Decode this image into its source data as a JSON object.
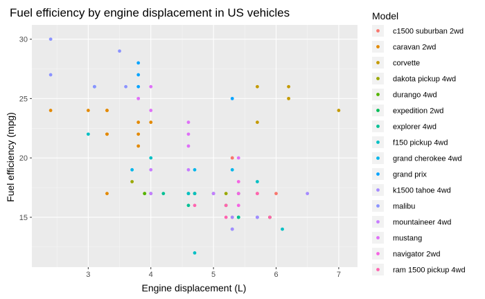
{
  "chart_data": {
    "type": "scatter",
    "title": "Fuel efficiency by engine displacement in US vehicles",
    "xlabel": "Engine displacement (L)",
    "ylabel": "Fuel efficiency (mpg)",
    "xlim": [
      2.1,
      7.3
    ],
    "ylim": [
      10.8,
      31.2
    ],
    "xticks": [
      3,
      4,
      5,
      6,
      7
    ],
    "yticks": [
      15,
      20,
      25,
      30
    ],
    "grid": true,
    "legend_title": "Model",
    "legend_position": "right",
    "series": [
      {
        "name": "c1500 suburban 2wd",
        "color": "#F8766D",
        "points": [
          [
            5.3,
            20
          ],
          [
            5.3,
            15
          ],
          [
            5.3,
            20
          ],
          [
            5.7,
            17
          ],
          [
            6.0,
            17
          ]
        ]
      },
      {
        "name": "caravan 2wd",
        "color": "#E38900",
        "points": [
          [
            2.4,
            24
          ],
          [
            3.0,
            24
          ],
          [
            3.3,
            22
          ],
          [
            3.3,
            22
          ],
          [
            3.3,
            24
          ],
          [
            3.3,
            24
          ],
          [
            3.3,
            17
          ],
          [
            3.8,
            22
          ],
          [
            3.8,
            21
          ],
          [
            3.8,
            23
          ],
          [
            4.0,
            23
          ]
        ]
      },
      {
        "name": "corvette",
        "color": "#C49A00",
        "points": [
          [
            5.7,
            26
          ],
          [
            5.7,
            23
          ],
          [
            6.2,
            26
          ],
          [
            6.2,
            25
          ],
          [
            7.0,
            24
          ]
        ]
      },
      {
        "name": "dakota pickup 4wd",
        "color": "#99A800",
        "points": [
          [
            3.7,
            18
          ],
          [
            3.9,
            17
          ],
          [
            4.7,
            17
          ],
          [
            5.2,
            17
          ],
          [
            5.9,
            15
          ]
        ]
      },
      {
        "name": "durango 4wd",
        "color": "#53B400",
        "points": [
          [
            3.9,
            17
          ],
          [
            4.7,
            17
          ],
          [
            5.2,
            16
          ],
          [
            5.9,
            15
          ]
        ]
      },
      {
        "name": "expedition 2wd",
        "color": "#00BC56",
        "points": [
          [
            4.6,
            17
          ],
          [
            5.4,
            17
          ],
          [
            5.4,
            15
          ]
        ]
      },
      {
        "name": "explorer 4wd",
        "color": "#00C094",
        "points": [
          [
            4.0,
            17
          ],
          [
            4.2,
            17
          ],
          [
            4.6,
            16
          ],
          [
            5.0,
            17
          ],
          [
            5.4,
            15
          ]
        ]
      },
      {
        "name": "f150 pickup 4wd",
        "color": "#00BFC4",
        "points": [
          [
            3.0,
            22
          ],
          [
            4.0,
            20
          ],
          [
            4.6,
            17
          ],
          [
            4.7,
            17
          ],
          [
            5.7,
            18
          ],
          [
            6.1,
            14
          ],
          [
            4.7,
            12
          ]
        ]
      },
      {
        "name": "grand cherokee 4wd",
        "color": "#00B6EB",
        "points": [
          [
            3.7,
            19
          ],
          [
            4.7,
            19
          ],
          [
            5.3,
            19
          ],
          [
            5.3,
            14
          ],
          [
            5.7,
            15
          ]
        ]
      },
      {
        "name": "grand prix",
        "color": "#06A4FF",
        "points": [
          [
            3.1,
            26
          ],
          [
            3.8,
            26
          ],
          [
            3.8,
            27
          ],
          [
            3.8,
            28
          ],
          [
            5.3,
            25
          ]
        ]
      },
      {
        "name": "k1500 tahoe 4wd",
        "color": "#A58AFF",
        "points": [
          [
            5.3,
            14
          ],
          [
            5.3,
            15
          ],
          [
            5.7,
            15
          ],
          [
            6.5,
            17
          ]
        ]
      },
      {
        "name": "malibu",
        "color": "#8B93FF",
        "points": [
          [
            2.4,
            30
          ],
          [
            2.4,
            27
          ],
          [
            3.1,
            26
          ],
          [
            3.5,
            29
          ],
          [
            3.6,
            26
          ]
        ]
      },
      {
        "name": "mountaineer 4wd",
        "color": "#C77CFF",
        "points": [
          [
            4.0,
            19
          ],
          [
            4.0,
            17
          ],
          [
            4.6,
            19
          ],
          [
            5.0,
            17
          ]
        ]
      },
      {
        "name": "mustang",
        "color": "#DF70F8",
        "points": [
          [
            3.8,
            25
          ],
          [
            4.0,
            26
          ],
          [
            4.0,
            24
          ],
          [
            4.6,
            23
          ],
          [
            4.6,
            22
          ],
          [
            4.6,
            21
          ],
          [
            5.4,
            20
          ]
        ]
      },
      {
        "name": "navigator 2wd",
        "color": "#F564E3",
        "points": [
          [
            5.4,
            16
          ],
          [
            5.4,
            18
          ],
          [
            5.4,
            17
          ]
        ]
      },
      {
        "name": "ram 1500 pickup 4wd",
        "color": "#FF64B0",
        "points": [
          [
            4.7,
            16
          ],
          [
            5.2,
            16
          ],
          [
            5.2,
            15
          ],
          [
            5.7,
            17
          ],
          [
            5.9,
            15
          ]
        ]
      }
    ]
  }
}
